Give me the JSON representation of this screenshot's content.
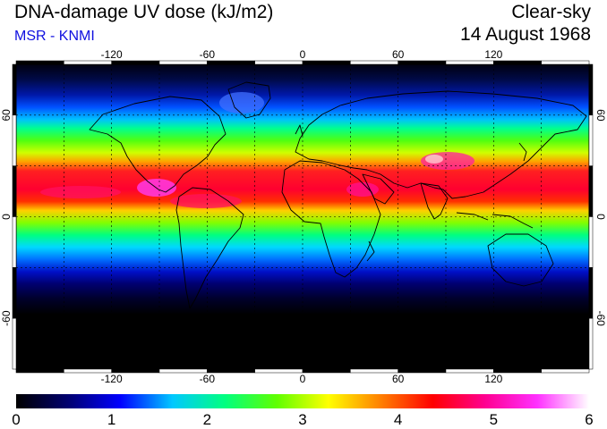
{
  "header": {
    "title": "DNA-damage UV dose (kJ/m2)",
    "source": "MSR - KNMI",
    "sky_condition": "Clear-sky",
    "date": "14 August 1968"
  },
  "map": {
    "lon_range": [
      -180,
      180
    ],
    "lat_range": [
      -90,
      90
    ],
    "lon_ticks": [
      -120,
      -60,
      0,
      60,
      120
    ],
    "lat_ticks": [
      60,
      0,
      -60
    ],
    "lon_tick_labels": [
      "-120",
      "-60",
      "0",
      "60",
      "120"
    ],
    "lat_tick_labels": [
      "60",
      "0",
      "-60"
    ],
    "gridlines": "dotted every 30 degrees",
    "coastlines": true
  },
  "colorbar": {
    "min": 0,
    "max": 6,
    "tick_labels": [
      "0",
      "1",
      "2",
      "3",
      "4",
      "5",
      "6"
    ],
    "stops": [
      "#000000",
      "#000070",
      "#0000ff",
      "#00c8ff",
      "#00ff80",
      "#60ff00",
      "#ffff00",
      "#ff8000",
      "#ff0000",
      "#ff0090",
      "#ff30ff",
      "#ffffff"
    ]
  },
  "colors": {
    "title_text": "#000000",
    "source_text": "#1010e0"
  }
}
